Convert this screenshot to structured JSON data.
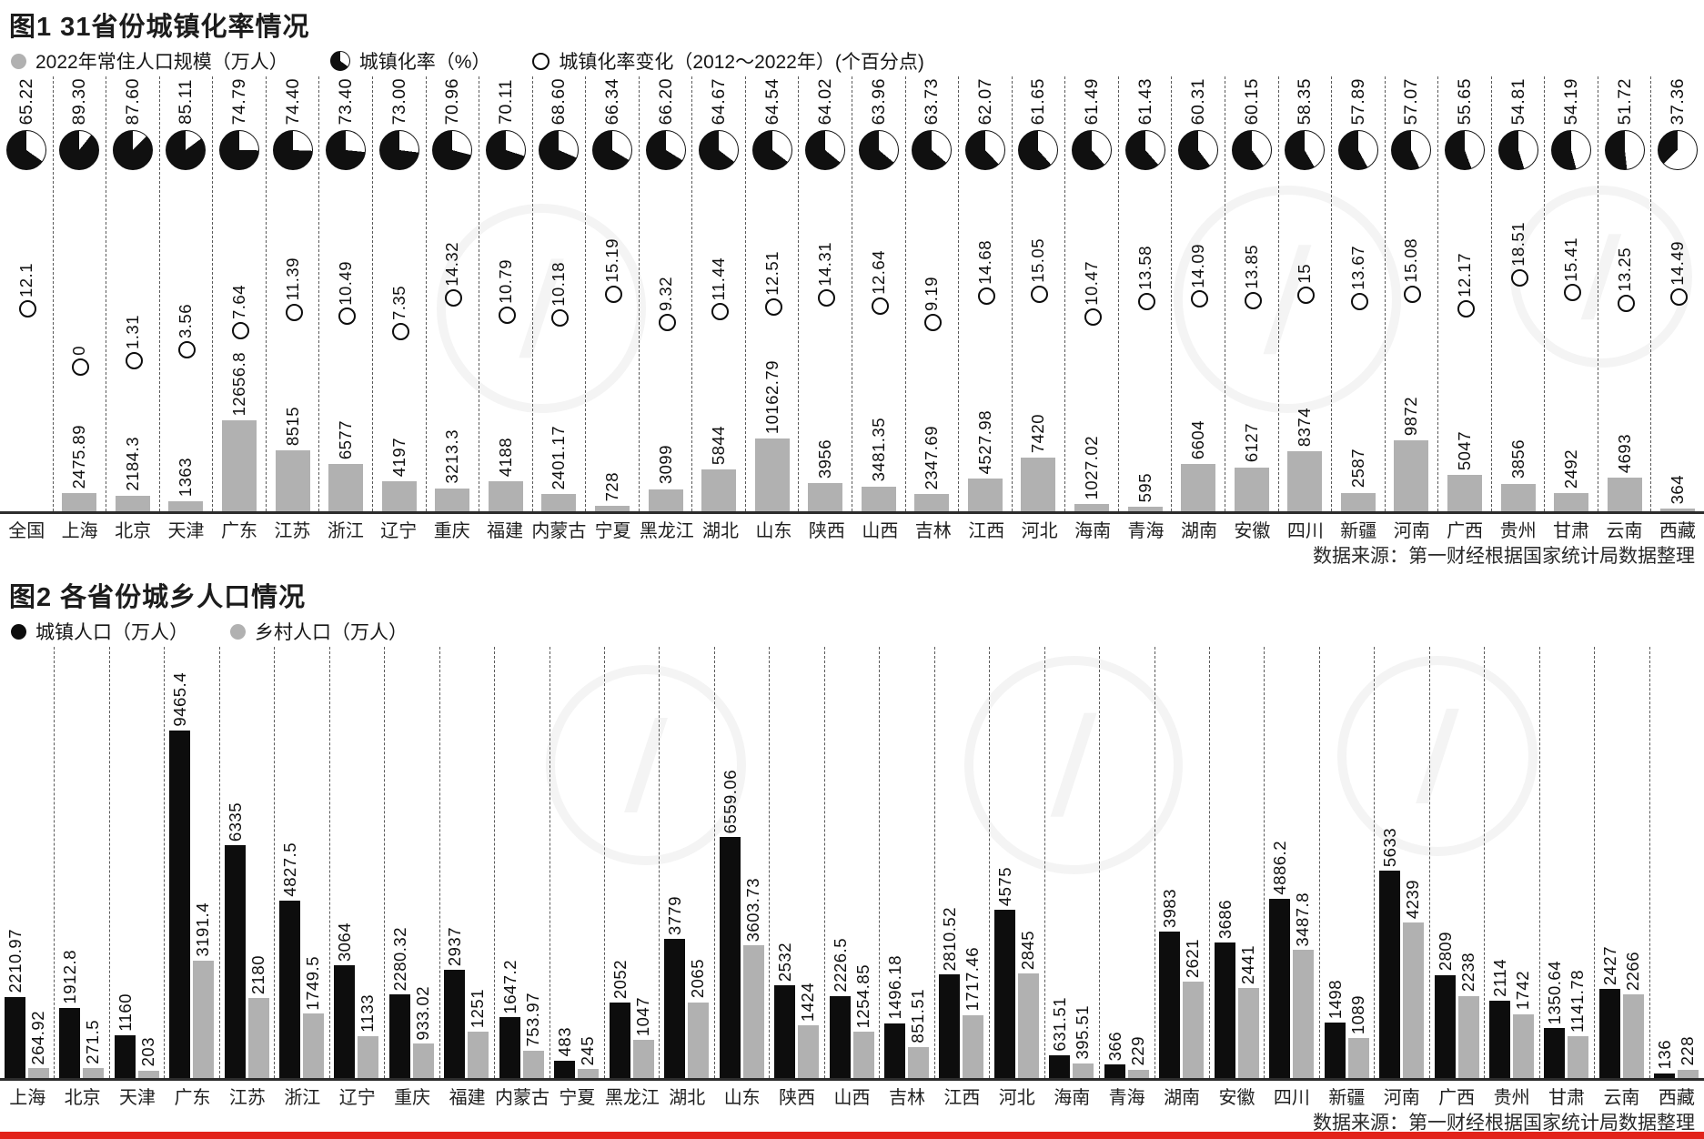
{
  "colors": {
    "accent_red": "#e2231a",
    "bar_gray": "#b1b1b1",
    "bar_black": "#0d0d0d",
    "pie_black": "#101010"
  },
  "chart1": {
    "title": "图1 31省份城镇化率情况",
    "legend": {
      "population": "2022年常住人口规模（万人）",
      "rate": "城镇化率（%）",
      "change": "城镇化率变化（2012～2022年）(个百分点)"
    },
    "source": "数据来源：第一财经根据国家统计局数据整理"
  },
  "chart2": {
    "title": "图2 各省份城乡人口情况",
    "legend": {
      "urban": "城镇人口（万人）",
      "rural": "乡村人口（万人）"
    },
    "source": "数据来源：第一财经根据国家统计局数据整理"
  },
  "chart_data": [
    {
      "type": "bar",
      "title": "图1 31省份城镇化率情况",
      "categories": [
        "全国",
        "上海",
        "北京",
        "天津",
        "广东",
        "江苏",
        "浙江",
        "辽宁",
        "重庆",
        "福建",
        "内蒙古",
        "宁夏",
        "黑龙江",
        "湖北",
        "山东",
        "陕西",
        "山西",
        "吉林",
        "江西",
        "河北",
        "海南",
        "青海",
        "湖南",
        "安徽",
        "四川",
        "新疆",
        "河南",
        "广西",
        "贵州",
        "甘肃",
        "云南",
        "西藏"
      ],
      "series": [
        {
          "name": "城镇化率（%）",
          "style": "pie-marker",
          "values": [
            "65.22",
            "89.30",
            "87.60",
            "85.11",
            "74.79",
            "74.40",
            "73.40",
            "73.00",
            "70.96",
            "70.11",
            "68.60",
            "66.34",
            "66.20",
            "64.67",
            "64.54",
            "64.02",
            "63.96",
            "63.73",
            "62.07",
            "61.65",
            "61.49",
            "61.43",
            "60.31",
            "60.15",
            "58.35",
            "57.89",
            "57.07",
            "55.65",
            "54.81",
            "54.19",
            "51.72",
            "37.36"
          ]
        },
        {
          "name": "城镇化率变化（2012～2022年）(个百分点)",
          "style": "open-circle-marker",
          "values": [
            "12.1",
            "0",
            "1.31",
            "3.56",
            "7.64",
            "11.39",
            "10.49",
            "7.35",
            "14.32",
            "10.79",
            "10.18",
            "15.19",
            "9.32",
            "11.44",
            "12.51",
            "14.31",
            "12.64",
            "9.19",
            "14.68",
            "15.05",
            "10.47",
            "13.58",
            "14.09",
            "13.85",
            "15",
            "13.67",
            "15.08",
            "12.17",
            "18.51",
            "15.41",
            "13.25",
            "14.49"
          ]
        },
        {
          "name": "2022年常住人口规模（万人）",
          "style": "gray-bar",
          "values": [
            null,
            "2475.89",
            "2184.3",
            "1363",
            "12656.8",
            "8515",
            "6577",
            "4197",
            "3213.3",
            "4188",
            "2401.17",
            "728",
            "3099",
            "5844",
            "10162.79",
            "3956",
            "3481.35",
            "2347.69",
            "4527.98",
            "7420",
            "1027.02",
            "595",
            "6604",
            "6127",
            "8374",
            "2587",
            "9872",
            "5047",
            "3856",
            "2492",
            "4693",
            "364"
          ]
        }
      ],
      "ylabel": "",
      "xlabel": "",
      "grid": "vertical-dashed",
      "legend_position": "top"
    },
    {
      "type": "bar",
      "title": "图2 各省份城乡人口情况",
      "categories": [
        "上海",
        "北京",
        "天津",
        "广东",
        "江苏",
        "浙江",
        "辽宁",
        "重庆",
        "福建",
        "内蒙古",
        "宁夏",
        "黑龙江",
        "湖北",
        "山东",
        "陕西",
        "山西",
        "吉林",
        "江西",
        "河北",
        "海南",
        "青海",
        "湖南",
        "安徽",
        "四川",
        "新疆",
        "河南",
        "广西",
        "贵州",
        "甘肃",
        "云南",
        "西藏"
      ],
      "series": [
        {
          "name": "城镇人口（万人）",
          "color": "#0d0d0d",
          "values": [
            "2210.97",
            "1912.8",
            "1160",
            "9465.4",
            "6335",
            "4827.5",
            "3064",
            "2280.32",
            "2937",
            "1647.2",
            "483",
            "2052",
            "3779",
            "6559.06",
            "2532",
            "2226.5",
            "1496.18",
            "2810.52",
            "4575",
            "631.51",
            "366",
            "3983",
            "3686",
            "4886.2",
            "1498",
            "5633",
            "2809",
            "2114",
            "1350.64",
            "2427",
            "136"
          ]
        },
        {
          "name": "乡村人口（万人）",
          "color": "#b1b1b1",
          "values": [
            "264.92",
            "271.5",
            "203",
            "3191.4",
            "2180",
            "1749.5",
            "1133",
            "933.02",
            "1251",
            "753.97",
            "245",
            "1047",
            "2065",
            "3603.73",
            "1424",
            "1254.85",
            "851.51",
            "1717.46",
            "2845",
            "395.51",
            "229",
            "2621",
            "2441",
            "3487.8",
            "1089",
            "4239",
            "2238",
            "1742",
            "1141.78",
            "2266",
            "228"
          ]
        }
      ],
      "ylabel": "",
      "xlabel": "",
      "grid": "vertical-dashed",
      "legend_position": "top"
    }
  ]
}
